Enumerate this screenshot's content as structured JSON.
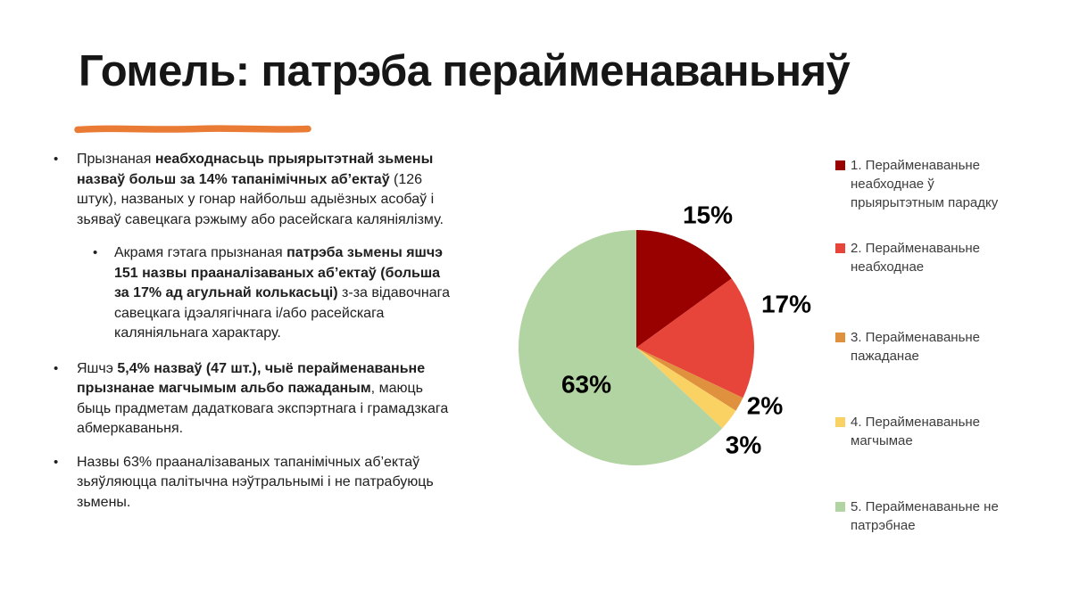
{
  "slide": {
    "title": "Гомель: патрэба перайменаваньняў",
    "accent_color": "#E97B35"
  },
  "bullets": [
    {
      "level": 1,
      "segments": [
        {
          "text": "Прызнаная ",
          "bold": false
        },
        {
          "text": "неабходнасьць прыярытэтнай зьмены назваў больш за 14% тапанімічных аб’ектаў",
          "bold": true
        },
        {
          "text": " (126 штук), названых у гонар найбольш адыёзных асобаў і зьяваў савецкага рэжыму або расейскага каляніялізму.",
          "bold": false
        }
      ]
    },
    {
      "level": 2,
      "segments": [
        {
          "text": "Акрамя гэтага прызнаная ",
          "bold": false
        },
        {
          "text": "патрэба зьмены яшчэ 151 назвы прааналізаваных аб’ектаў (больша за 17% ад агульнай колькасьці)",
          "bold": true
        },
        {
          "text": " з-за відавочнага савецкага ідэалягічнага і/або расейскага каляніяльнага характару.",
          "bold": false
        }
      ]
    },
    {
      "level": 1,
      "segments": [
        {
          "text": "Яшчэ ",
          "bold": false
        },
        {
          "text": "5,4% назваў (47 шт.), чыё перайменаваньне прызнанае магчымым альбо пажаданым",
          "bold": true
        },
        {
          "text": ", маюць быць прадметам дадатковага экспэртнага і грамадзкага абмеркаваньня.",
          "bold": false
        }
      ]
    },
    {
      "level": 1,
      "segments": [
        {
          "text": "Назвы 63% прааналізаваных тапанімічных аб’ектаў зьяўляюцца палітычна нэўтральнымі і не патрабуюць зьмены.",
          "bold": false
        }
      ]
    }
  ],
  "chart_data": {
    "type": "pie",
    "labels": [
      "1. Перайменаваньне неабходнае ў прыярытэтным парадку",
      "2. Перайменаваньне неабходнае",
      "3. Перайменаваньне пажаданае",
      "4. Перайменаваньне магчымае",
      "5. Перайменаваньне не патрэбнае"
    ],
    "values": [
      15,
      17,
      2,
      3,
      63
    ],
    "value_labels": [
      "15%",
      "17%",
      "2%",
      "3%",
      "63%"
    ],
    "colors": [
      "#990000",
      "#E8453A",
      "#E0913D",
      "#FAD264",
      "#B2D4A2"
    ],
    "start_angle_deg": 0,
    "direction": "clockwise",
    "legend_position": "right"
  }
}
